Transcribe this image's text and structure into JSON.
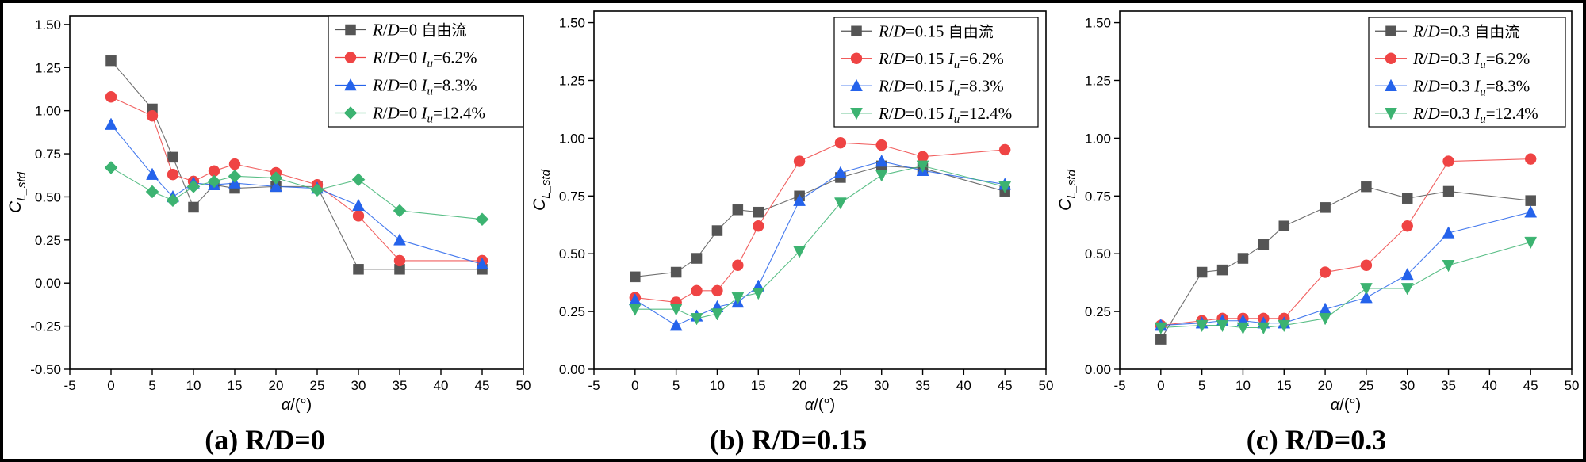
{
  "captions": [
    "(a) R/D=0",
    "(b) R/D=0.15",
    "(c) R/D=0.3"
  ],
  "chart_data": [
    {
      "type": "line",
      "title": "",
      "xlabel": "α/(°)",
      "ylabel": "C_L_std",
      "xlim": [
        -5,
        50
      ],
      "ylim": [
        -0.5,
        1.55
      ],
      "xticks": [
        -5,
        0,
        5,
        10,
        15,
        20,
        25,
        30,
        35,
        40,
        45,
        50
      ],
      "yticks": [
        -0.5,
        -0.25,
        0,
        0.25,
        0.5,
        0.75,
        1.0,
        1.25,
        1.5
      ],
      "grid": false,
      "legend_position": "top-right",
      "x": [
        0,
        5,
        7.5,
        10,
        12.5,
        15,
        20,
        25,
        30,
        35,
        45
      ],
      "series": [
        {
          "name": "R/D=0 自由流",
          "color": "#555555",
          "marker": "square",
          "values": [
            1.29,
            1.01,
            0.73,
            0.44,
            0.57,
            0.55,
            0.56,
            0.56,
            0.08,
            0.08,
            0.08
          ]
        },
        {
          "name": "R/D=0 Iu=6.2%",
          "color": "#ef4444",
          "marker": "circle",
          "values": [
            1.08,
            0.97,
            0.63,
            0.59,
            0.65,
            0.69,
            0.64,
            0.57,
            0.39,
            0.13,
            0.13
          ]
        },
        {
          "name": "R/D=0 Iu=8.3%",
          "color": "#2563eb",
          "marker": "triangle-up",
          "values": [
            0.92,
            0.63,
            0.5,
            0.58,
            0.57,
            0.58,
            0.56,
            0.55,
            0.45,
            0.25,
            0.11
          ]
        },
        {
          "name": "R/D=0 Iu=12.4%",
          "color": "#3cb371",
          "marker": "diamond",
          "values": [
            0.67,
            0.53,
            0.48,
            0.56,
            0.59,
            0.62,
            0.61,
            0.54,
            0.6,
            0.42,
            0.37
          ]
        }
      ]
    },
    {
      "type": "line",
      "title": "",
      "xlabel": "α/(°)",
      "ylabel": "C_L_std",
      "xlim": [
        -5,
        50
      ],
      "ylim": [
        0,
        1.55
      ],
      "xticks": [
        -5,
        0,
        5,
        10,
        15,
        20,
        25,
        30,
        35,
        40,
        45,
        50
      ],
      "yticks": [
        0,
        0.25,
        0.5,
        0.75,
        1.0,
        1.25,
        1.5
      ],
      "grid": false,
      "legend_position": "top-right",
      "x": [
        0,
        5,
        7.5,
        10,
        12.5,
        15,
        20,
        25,
        30,
        35,
        45
      ],
      "series": [
        {
          "name": "R/D=0.15 自由流",
          "color": "#555555",
          "marker": "square",
          "values": [
            0.4,
            0.42,
            0.48,
            0.6,
            0.69,
            0.68,
            0.75,
            0.83,
            0.88,
            0.87,
            0.77
          ]
        },
        {
          "name": "R/D=0.15 Iu=6.2%",
          "color": "#ef4444",
          "marker": "circle",
          "values": [
            0.31,
            0.29,
            0.34,
            0.34,
            0.45,
            0.62,
            0.9,
            0.98,
            0.97,
            0.92,
            0.95
          ]
        },
        {
          "name": "R/D=0.15 Iu=8.3%",
          "color": "#2563eb",
          "marker": "triangle-up",
          "values": [
            0.3,
            0.19,
            0.23,
            0.27,
            0.29,
            0.36,
            0.73,
            0.85,
            0.9,
            0.86,
            0.8
          ]
        },
        {
          "name": "R/D=0.15 Iu=12.4%",
          "color": "#3cb371",
          "marker": "triangle-down",
          "values": [
            0.26,
            0.26,
            0.22,
            0.24,
            0.31,
            0.33,
            0.51,
            0.72,
            0.84,
            0.88,
            0.79
          ]
        }
      ]
    },
    {
      "type": "line",
      "title": "",
      "xlabel": "α/(°)",
      "ylabel": "C_L_std",
      "xlim": [
        -5,
        50
      ],
      "ylim": [
        0,
        1.55
      ],
      "xticks": [
        -5,
        0,
        5,
        10,
        15,
        20,
        25,
        30,
        35,
        40,
        45,
        50
      ],
      "yticks": [
        0,
        0.25,
        0.5,
        0.75,
        1.0,
        1.25,
        1.5
      ],
      "grid": false,
      "legend_position": "top-right",
      "x": [
        0,
        5,
        7.5,
        10,
        12.5,
        15,
        20,
        25,
        30,
        35,
        45
      ],
      "series": [
        {
          "name": "R/D=0.3 自由流",
          "color": "#555555",
          "marker": "square",
          "values": [
            0.13,
            0.42,
            0.43,
            0.48,
            0.54,
            0.62,
            0.7,
            0.79,
            0.74,
            0.77,
            0.73
          ]
        },
        {
          "name": "R/D=0.3 Iu=6.2%",
          "color": "#ef4444",
          "marker": "circle",
          "values": [
            0.19,
            0.21,
            0.22,
            0.22,
            0.22,
            0.22,
            0.42,
            0.45,
            0.62,
            0.9,
            0.91
          ]
        },
        {
          "name": "R/D=0.3 Iu=8.3%",
          "color": "#2563eb",
          "marker": "triangle-up",
          "values": [
            0.19,
            0.2,
            0.21,
            0.21,
            0.2,
            0.2,
            0.26,
            0.31,
            0.41,
            0.59,
            0.68
          ]
        },
        {
          "name": "R/D=0.3 Iu=12.4%",
          "color": "#3cb371",
          "marker": "triangle-down",
          "values": [
            0.18,
            0.19,
            0.19,
            0.18,
            0.18,
            0.19,
            0.22,
            0.35,
            0.35,
            0.45,
            0.55
          ]
        }
      ]
    }
  ]
}
